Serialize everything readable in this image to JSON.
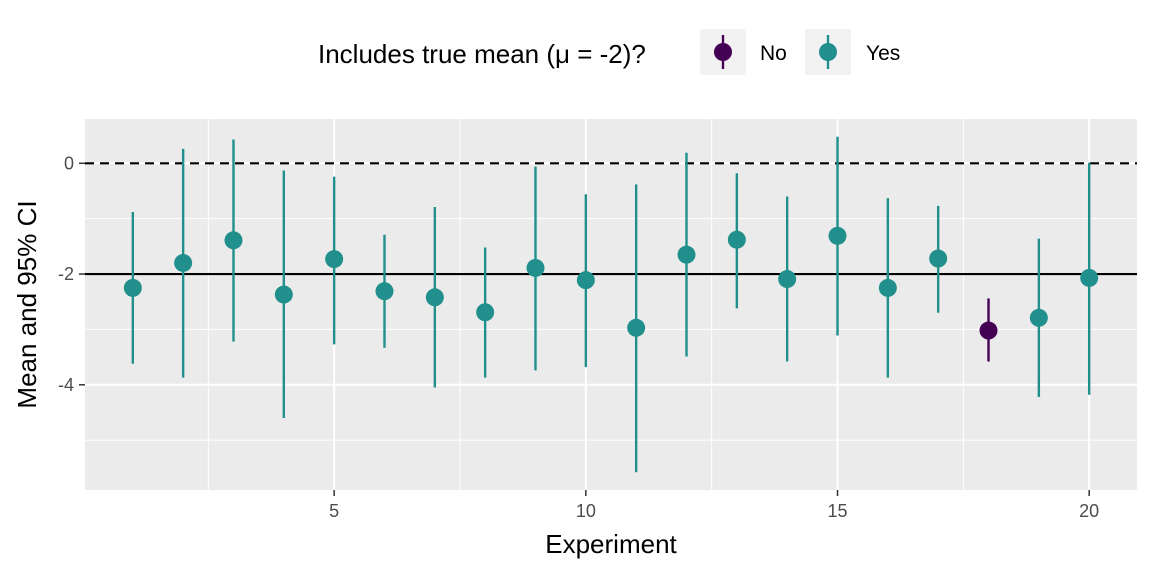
{
  "chart_data": {
    "type": "scatter",
    "subtype": "point-range",
    "xlabel": "Experiment",
    "ylabel": "Mean and 95% CI",
    "xlim": [
      0.05,
      20.95
    ],
    "ylim": [
      -5.9,
      0.8
    ],
    "x_ticks": [
      5,
      10,
      15,
      20
    ],
    "x_tick_labels": [
      "5",
      "10",
      "15",
      "20"
    ],
    "y_ticks": [
      0,
      -2,
      -4
    ],
    "y_tick_labels": [
      "0",
      "-2",
      "-4"
    ],
    "reference_lines": [
      {
        "y": 0,
        "style": "dashed"
      },
      {
        "y": -2,
        "style": "solid"
      }
    ],
    "legend": {
      "title": "Includes true mean (μ = -2)?",
      "position": "top",
      "entries": [
        {
          "label": "No",
          "color": "#440154"
        },
        {
          "label": "Yes",
          "color": "#21908C"
        }
      ]
    },
    "grid": true,
    "background": "#EBEBEB",
    "points": [
      {
        "x": 1,
        "mean": -2.25,
        "lower": -3.62,
        "upper": -0.88,
        "group": "Yes"
      },
      {
        "x": 2,
        "mean": -1.8,
        "lower": -3.87,
        "upper": 0.26,
        "group": "Yes"
      },
      {
        "x": 3,
        "mean": -1.39,
        "lower": -3.22,
        "upper": 0.43,
        "group": "Yes"
      },
      {
        "x": 4,
        "mean": -2.37,
        "lower": -4.6,
        "upper": -0.13,
        "group": "Yes"
      },
      {
        "x": 5,
        "mean": -1.73,
        "lower": -3.27,
        "upper": -0.24,
        "group": "Yes"
      },
      {
        "x": 6,
        "mean": -2.31,
        "lower": -3.33,
        "upper": -1.29,
        "group": "Yes"
      },
      {
        "x": 7,
        "mean": -2.42,
        "lower": -4.05,
        "upper": -0.79,
        "group": "Yes"
      },
      {
        "x": 8,
        "mean": -2.69,
        "lower": -3.87,
        "upper": -1.52,
        "group": "Yes"
      },
      {
        "x": 9,
        "mean": -1.89,
        "lower": -3.74,
        "upper": -0.06,
        "group": "Yes"
      },
      {
        "x": 10,
        "mean": -2.11,
        "lower": -3.68,
        "upper": -0.56,
        "group": "Yes"
      },
      {
        "x": 11,
        "mean": -2.97,
        "lower": -5.58,
        "upper": -0.38,
        "group": "Yes"
      },
      {
        "x": 12,
        "mean": -1.65,
        "lower": -3.49,
        "upper": 0.19,
        "group": "Yes"
      },
      {
        "x": 13,
        "mean": -1.38,
        "lower": -2.62,
        "upper": -0.18,
        "group": "Yes"
      },
      {
        "x": 14,
        "mean": -2.09,
        "lower": -3.58,
        "upper": -0.6,
        "group": "Yes"
      },
      {
        "x": 15,
        "mean": -1.31,
        "lower": -3.11,
        "upper": 0.48,
        "group": "Yes"
      },
      {
        "x": 16,
        "mean": -2.25,
        "lower": -3.87,
        "upper": -0.63,
        "group": "Yes"
      },
      {
        "x": 17,
        "mean": -1.72,
        "lower": -2.7,
        "upper": -0.77,
        "group": "Yes"
      },
      {
        "x": 18,
        "mean": -3.02,
        "lower": -3.58,
        "upper": -2.44,
        "group": "No"
      },
      {
        "x": 19,
        "mean": -2.79,
        "lower": -4.22,
        "upper": -1.36,
        "group": "Yes"
      },
      {
        "x": 20,
        "mean": -2.07,
        "lower": -4.18,
        "upper": 0.01,
        "group": "Yes"
      }
    ]
  }
}
